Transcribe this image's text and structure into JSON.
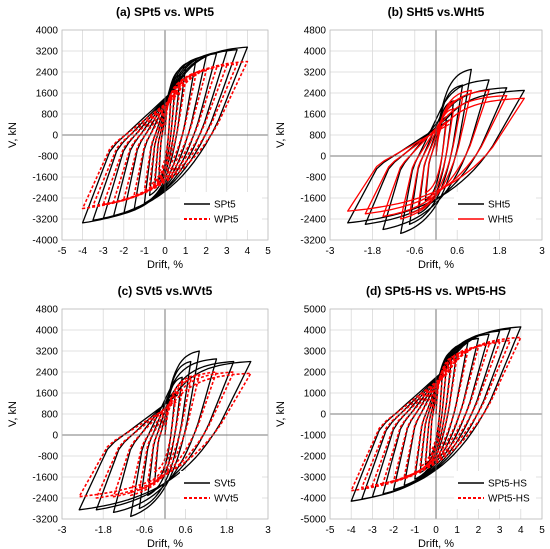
{
  "chart_data": [
    {
      "type": "line",
      "title": "(a) SPt5 vs. WPt5",
      "xlabel": "Drift, %",
      "ylabel": "V, kN",
      "xlim": [
        -5,
        5
      ],
      "ylim": [
        -4000,
        4000
      ],
      "xticks": [
        -5,
        -4,
        -3,
        -2,
        -1,
        0,
        1,
        2,
        3,
        4,
        5
      ],
      "yticks": [
        -4000,
        -3200,
        -2400,
        -1600,
        -800,
        0,
        800,
        1600,
        2400,
        3200,
        4000
      ],
      "grid": true,
      "legend_position": "bottom-right",
      "series": [
        {
          "name": "SPt5",
          "color": "#000000",
          "style": "solid",
          "drift_peaks": [
            0.3,
            0.5,
            0.75,
            1,
            1.5,
            2,
            2.5,
            3,
            3.5,
            4
          ],
          "load_peaks": [
            1700,
            2000,
            2300,
            2600,
            2850,
            3000,
            3100,
            3200,
            3250,
            3350
          ],
          "neg_load_peaks": [
            -1700,
            -2000,
            -2300,
            -2600,
            -2850,
            -3000,
            -3100,
            -3200,
            -3250,
            -3350
          ]
        },
        {
          "name": "WPt5",
          "color": "#ff0000",
          "style": "dashed",
          "drift_peaks": [
            0.3,
            0.5,
            0.75,
            1,
            1.5,
            2,
            2.5,
            3,
            3.5,
            4
          ],
          "load_peaks": [
            1400,
            1700,
            1900,
            2100,
            2300,
            2450,
            2550,
            2650,
            2700,
            2800
          ],
          "neg_load_peaks": [
            -1400,
            -1700,
            -1900,
            -2100,
            -2300,
            -2450,
            -2550,
            -2650,
            -2700,
            -2800
          ]
        }
      ]
    },
    {
      "type": "line",
      "title": "(b) SHt5 vs.WHt5",
      "xlabel": "Drift, %",
      "ylabel": "V, kN",
      "xlim": [
        -3,
        3
      ],
      "ylim": [
        -3200,
        4800
      ],
      "xticks": [
        -3,
        -1.8,
        -0.6,
        0.6,
        1.8,
        3
      ],
      "yticks": [
        -3200,
        -2400,
        -1600,
        -800,
        0,
        800,
        1600,
        2400,
        3200,
        4000,
        4800
      ],
      "grid": true,
      "legend_position": "bottom-right",
      "series": [
        {
          "name": "SHt5",
          "color": "#000000",
          "style": "solid",
          "drift_peaks": [
            0.3,
            0.5,
            0.75,
            1,
            1.5,
            2,
            2.5
          ],
          "load_peaks": [
            1500,
            2100,
            2700,
            3300,
            2900,
            2600,
            2500
          ],
          "neg_load_peaks": [
            -1700,
            -2200,
            -2600,
            -2950,
            -2800,
            -2600,
            -2550
          ]
        },
        {
          "name": "WHt5",
          "color": "#ff0000",
          "style": "solid",
          "drift_peaks": [
            0.3,
            0.5,
            0.75,
            1,
            1.5,
            2,
            2.5
          ],
          "load_peaks": [
            1300,
            1800,
            2200,
            2500,
            2500,
            2300,
            2200
          ],
          "neg_load_peaks": [
            -1400,
            -1900,
            -2200,
            -2400,
            -2300,
            -2200,
            -2100
          ]
        }
      ]
    },
    {
      "type": "line",
      "title": "(c) SVt5 vs.WVt5",
      "xlabel": "Drift, %",
      "ylabel": "V, kN",
      "xlim": [
        -3,
        3
      ],
      "ylim": [
        -3200,
        4800
      ],
      "xticks": [
        -3,
        -1.8,
        -0.6,
        0.6,
        1.8,
        3
      ],
      "yticks": [
        -3200,
        -2400,
        -1600,
        -800,
        0,
        800,
        1600,
        2400,
        3200,
        4000,
        4800
      ],
      "grid": true,
      "legend_position": "bottom-right",
      "series": [
        {
          "name": "SVt5",
          "color": "#000000",
          "style": "solid",
          "drift_peaks": [
            0.3,
            0.5,
            0.75,
            1,
            1.5,
            2,
            2.5
          ],
          "load_peaks": [
            1600,
            2200,
            2800,
            3200,
            2900,
            2800,
            2800
          ],
          "neg_load_peaks": [
            -1800,
            -2300,
            -2800,
            -3100,
            -2950,
            -2850,
            -2850
          ]
        },
        {
          "name": "WVt5",
          "color": "#ff0000",
          "style": "dashed",
          "drift_peaks": [
            0.3,
            0.5,
            0.75,
            1,
            1.5,
            2,
            2.5
          ],
          "load_peaks": [
            1300,
            1700,
            2100,
            2300,
            2400,
            2400,
            2350
          ],
          "neg_load_peaks": [
            -1400,
            -1800,
            -2100,
            -2300,
            -2350,
            -2400,
            -2350
          ]
        }
      ]
    },
    {
      "type": "line",
      "title": "(d) SPt5-HS vs. WPt5-HS",
      "xlabel": "Drift, %",
      "ylabel": "V, kN",
      "xlim": [
        -5,
        5
      ],
      "ylim": [
        -5000,
        5000
      ],
      "xticks": [
        -5,
        -4,
        -3,
        -2,
        -1,
        0,
        1,
        2,
        3,
        4,
        5
      ],
      "yticks": [
        -5000,
        -4000,
        -3000,
        -2000,
        -1000,
        0,
        1000,
        2000,
        3000,
        4000,
        5000
      ],
      "grid": true,
      "legend_position": "bottom-right",
      "series": [
        {
          "name": "SPt5-HS",
          "color": "#000000",
          "style": "solid",
          "drift_peaks": [
            0.3,
            0.5,
            0.75,
            1,
            1.5,
            2,
            2.5,
            3,
            3.5,
            4
          ],
          "load_peaks": [
            2000,
            2400,
            2800,
            3100,
            3400,
            3600,
            3800,
            3950,
            4050,
            4150
          ],
          "neg_load_peaks": [
            -2000,
            -2400,
            -2800,
            -3100,
            -3400,
            -3600,
            -3800,
            -3950,
            -4050,
            -4150
          ]
        },
        {
          "name": "WPt5-HS",
          "color": "#ff0000",
          "style": "dashed",
          "drift_peaks": [
            0.3,
            0.5,
            0.75,
            1,
            1.5,
            2,
            2.5,
            3,
            3.5,
            4
          ],
          "load_peaks": [
            1800,
            2200,
            2500,
            2800,
            3000,
            3200,
            3300,
            3400,
            3500,
            3650
          ],
          "neg_load_peaks": [
            -1800,
            -2200,
            -2500,
            -2800,
            -3000,
            -3200,
            -3300,
            -3400,
            -3500,
            -3650
          ]
        }
      ]
    }
  ]
}
